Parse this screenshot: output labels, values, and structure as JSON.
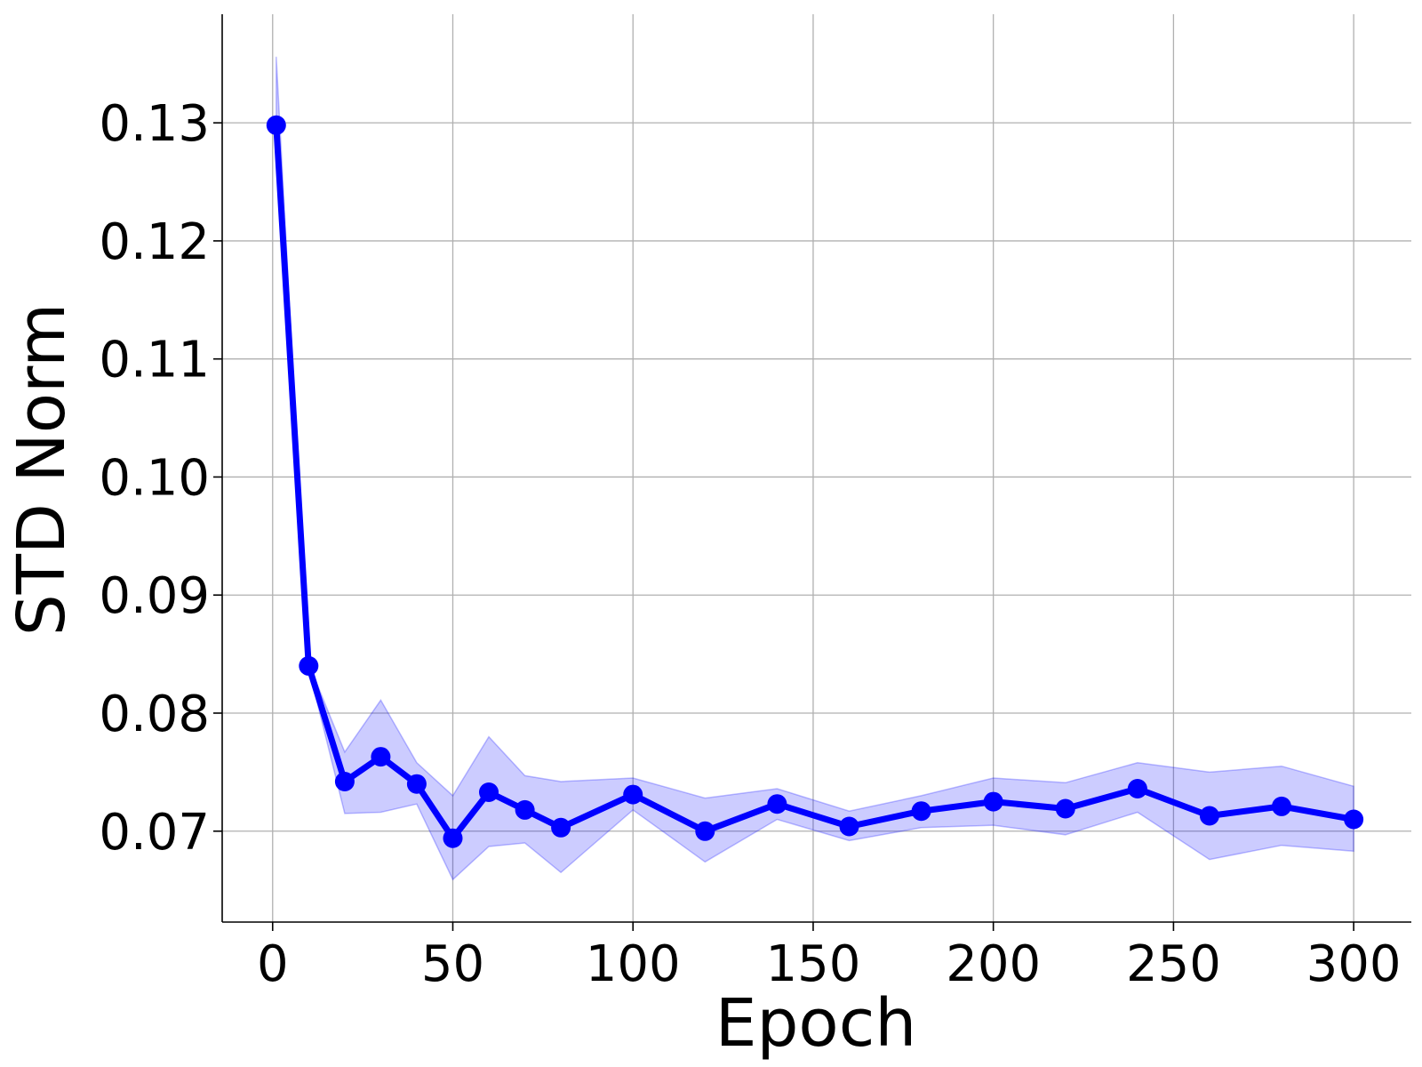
{
  "chart_data": {
    "type": "line",
    "xlabel": "Epoch",
    "ylabel": "STD Norm",
    "xlim": [
      -14,
      316
    ],
    "ylim": [
      0.0623,
      0.1392
    ],
    "x_ticks": [
      0,
      50,
      100,
      150,
      200,
      250,
      300
    ],
    "y_ticks": [
      0.07,
      0.08,
      0.09,
      0.1,
      0.11,
      0.12,
      0.13
    ],
    "y_tick_labels": [
      "0.07",
      "0.08",
      "0.09",
      "0.10",
      "0.11",
      "0.12",
      "0.13"
    ],
    "grid": true,
    "series": [
      {
        "color": "#0000ff",
        "band_color": "#0000ff",
        "x": [
          1,
          10,
          20,
          30,
          40,
          50,
          60,
          70,
          80,
          100,
          120,
          140,
          160,
          180,
          200,
          220,
          240,
          260,
          280,
          300
        ],
        "y": [
          0.1298,
          0.084,
          0.0742,
          0.0763,
          0.074,
          0.0694,
          0.0733,
          0.0718,
          0.0703,
          0.0731,
          0.07,
          0.0723,
          0.0704,
          0.0717,
          0.0725,
          0.0719,
          0.0736,
          0.0713,
          0.0721,
          0.071
        ],
        "lower": [
          0.1298,
          0.0838,
          0.0715,
          0.0716,
          0.0723,
          0.0659,
          0.0687,
          0.069,
          0.0665,
          0.0718,
          0.0674,
          0.071,
          0.0692,
          0.0703,
          0.0705,
          0.0697,
          0.0716,
          0.0676,
          0.0688,
          0.0683
        ],
        "upper": [
          0.1356,
          0.0842,
          0.0767,
          0.0811,
          0.0758,
          0.073,
          0.078,
          0.0747,
          0.0742,
          0.0745,
          0.0728,
          0.0736,
          0.0717,
          0.073,
          0.0745,
          0.0741,
          0.0758,
          0.075,
          0.0755,
          0.0738
        ]
      }
    ]
  }
}
